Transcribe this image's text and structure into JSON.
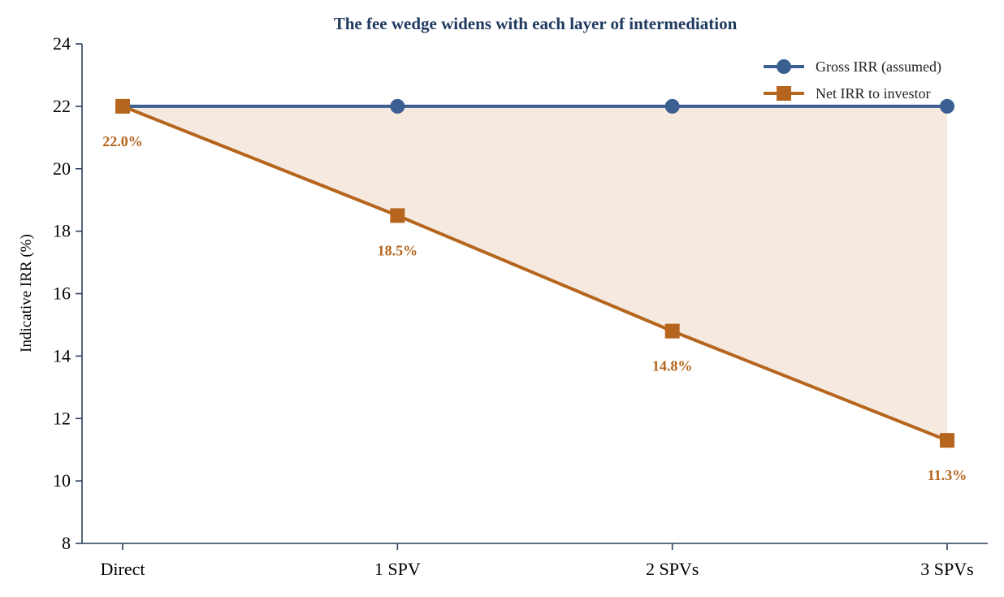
{
  "chart_data": {
    "type": "line",
    "title": "The fee wedge widens with each layer of intermediation",
    "xlabel": "",
    "ylabel": "Indicative IRR (%)",
    "categories": [
      "Direct",
      "1 SPV",
      "2 SPVs",
      "3 SPVs"
    ],
    "ylim": [
      8,
      24
    ],
    "yticks": [
      8,
      10,
      12,
      14,
      16,
      18,
      20,
      22,
      24
    ],
    "grid": false,
    "legend": "top-right",
    "series": [
      {
        "name": "Gross IRR (assumed)",
        "values": [
          22,
          22,
          22,
          22
        ],
        "color": "#3b5f91",
        "marker": "circle"
      },
      {
        "name": "Net IRR to investor",
        "values": [
          22.0,
          18.5,
          14.8,
          11.3
        ],
        "color": "#b5651d",
        "marker": "square"
      }
    ],
    "data_labels": [
      "22.0%",
      "18.5%",
      "14.8%",
      "11.3%"
    ],
    "fill_between": {
      "color": "#f5e9e0"
    },
    "colors": {
      "title": "#1f3a5f",
      "axis": "#2b3f5c"
    }
  }
}
